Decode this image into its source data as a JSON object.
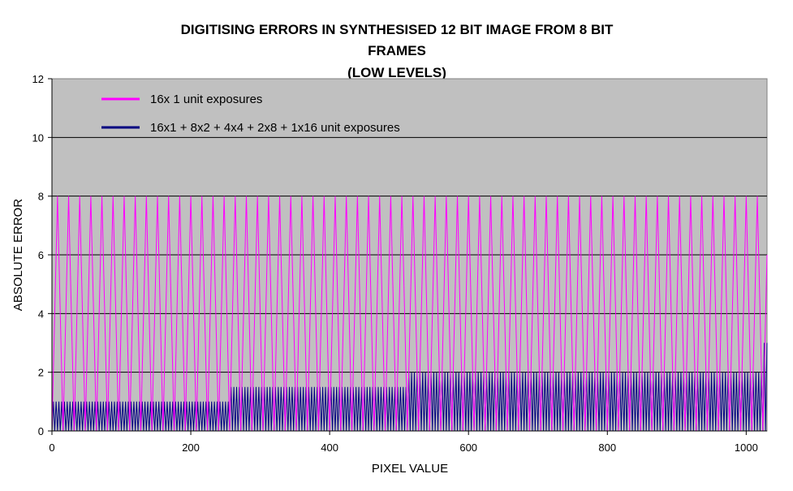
{
  "chart_data": {
    "type": "line",
    "title_lines": [
      "DIGITISING ERRORS IN SYNTHESISED 12  BIT IMAGE FROM 8 BIT",
      "FRAMES",
      "(LOW LEVELS)"
    ],
    "xlabel": "PIXEL VALUE",
    "ylabel": "ABSOLUTE ERROR",
    "xlim": [
      0,
      1030
    ],
    "ylim": [
      0,
      12
    ],
    "x_ticks": [
      0,
      200,
      400,
      600,
      800,
      1000
    ],
    "y_ticks": [
      0,
      2,
      4,
      6,
      8,
      10,
      12
    ],
    "grid": "horizontal",
    "plot_background": "#c0c0c0",
    "legend_placement": "top-left inside plot",
    "series": [
      {
        "name": "16x 1 unit exposures",
        "color": "#ff00ff",
        "pattern": "sawtooth between 0 and 8 with period 16 (error at x = |((x+8) mod 16) - 8|)",
        "period": 16,
        "peak": 8,
        "x_range": [
          0,
          1030
        ]
      },
      {
        "name": "16x1 + 8x2 + 4x4 + 2x8 + 1x16 unit exposures",
        "color": "#000080",
        "pattern": "rapid oscillation between 0 and a ceiling that steps from 1 to 1.5 to 2 (spike to 3 at end)",
        "segments": [
          {
            "from": 0,
            "to": 256,
            "max": 1.0
          },
          {
            "from": 256,
            "to": 512,
            "max": 1.5
          },
          {
            "from": 512,
            "to": 1024,
            "max": 2.0
          },
          {
            "from": 1024,
            "to": 1030,
            "max": 3.0
          }
        ]
      }
    ]
  }
}
